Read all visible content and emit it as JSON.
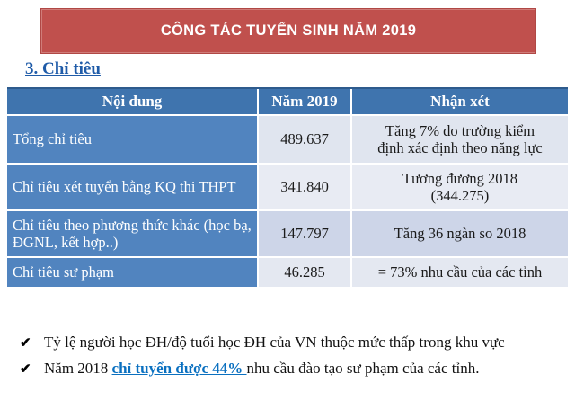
{
  "banner": {
    "title": "CÔNG TÁC TUYỂN SINH NĂM 2019",
    "bg_color": "#C0504D",
    "text_color": "#FFFFFF"
  },
  "section_heading": "3. Chỉ tiêu",
  "table": {
    "headers": [
      "Nội dung",
      "Năm 2019",
      "Nhận xét"
    ],
    "header_bg": "#3F74AE",
    "first_column_bg": "#5184BF",
    "rows": [
      {
        "label": "Tổng chỉ tiêu",
        "value": "489.637",
        "comment": "Tăng 7% do trường kiểm\nđịnh xác định theo năng lực"
      },
      {
        "label": "Chỉ tiêu xét tuyển bằng KQ thi THPT",
        "value": "341.840",
        "comment": "Tương đương 2018\n(344.275)"
      },
      {
        "label": "Chỉ tiêu theo phương thức khác (học bạ, ĐGNL, kết hợp..)",
        "value": "147.797",
        "comment": "Tăng 36 ngàn so 2018"
      },
      {
        "label": "Chỉ tiêu sư phạm",
        "value": "46.285",
        "comment": "= 73% nhu cầu của các tỉnh"
      }
    ]
  },
  "bullets": [
    {
      "marker": "✔",
      "text": "Tỷ lệ người học ĐH/độ tuổi học ĐH của VN thuộc mức thấp trong khu vực"
    },
    {
      "marker": "✔",
      "prefix": "Năm 2018 ",
      "link": "chỉ tuyển được 44% ",
      "suffix": "nhu cầu đào tạo sư phạm của các tỉnh.",
      "link_color": "#0A70C0"
    }
  ]
}
